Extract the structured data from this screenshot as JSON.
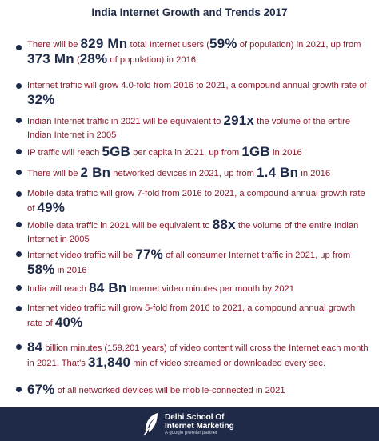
{
  "title": "India Internet Growth and Trends 2017",
  "items": [
    {
      "a": "There will be ",
      "n1": "829 Mn",
      "b": " total Internet users (",
      "n2": "59%",
      "c": " of population) in 2021, up from ",
      "n3": "373 Mn",
      "d": " (",
      "n4": "28%",
      "e": " of population) in 2016."
    },
    {
      "a": "Internet traffic will grow 4.0-fold from 2016 to 2021, a compound annual growth rate of ",
      "n1": "32%"
    },
    {
      "a": "Indian Internet traffic in 2021 will be equivalent to ",
      "n1": "291x",
      "b": " the volume of the entire Indian Internet in 2005"
    },
    {
      "a": "IP traffic will reach ",
      "n1": "5GB",
      "b": " per capita in 2021, up from ",
      "n2": "1GB",
      "c": " in 2016"
    },
    {
      "a": "There will be ",
      "n1": "2 Bn",
      "b": " networked devices in 2021, up from ",
      "n2": "1.4 Bn",
      "c": " in 2016"
    },
    {
      "a": "Mobile data traffic will grow 7-fold from 2016 to 2021, a compound annual growth rate of ",
      "n1": "49%"
    },
    {
      "a": "Mobile data traffic in 2021 will be equivalent to ",
      "n1": "88x",
      "b": " the volume of the entire Indian Internet in 2005"
    },
    {
      "a": "Internet video traffic will be ",
      "n1": "77%",
      "b": " of all consumer Internet traffic in 2021, up from ",
      "n2": "58%",
      "c": " in 2016"
    },
    {
      "a": "India will reach ",
      "n1": "84 Bn",
      "b": " Internet video minutes per month by 2021"
    },
    {
      "a": "Internet video traffic will grow 5-fold from 2016 to 2021, a compound annual growth rate of ",
      "n1": "40%"
    },
    {
      "n1": "84",
      "a": " billion minutes (159,201 years) of video content will cross the Internet each month in 2021. That's ",
      "n2": "31,840",
      "b": " min of video streamed or downloaded every sec."
    },
    {
      "n1": "67%",
      "a": " of all networked devices will be mobile-connected in 2021"
    }
  ],
  "footer": {
    "brand_line1": "Delhi School Of",
    "brand_line2": "Internet Marketing",
    "tagline": "A google premier partner",
    "icon": "feather-quill-icon"
  }
}
